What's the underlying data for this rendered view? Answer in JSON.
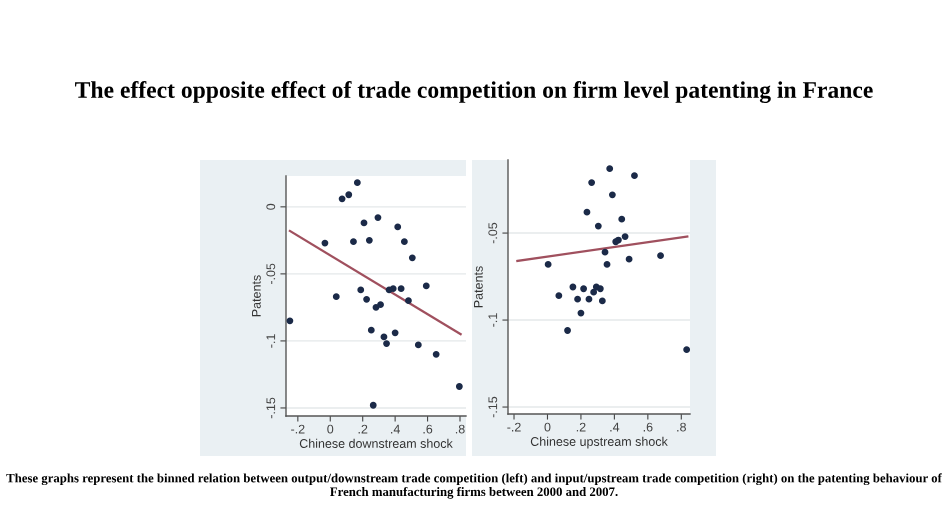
{
  "chart_data": [
    {
      "type": "scatter",
      "title": "The effect opposite effect of trade competition on firm level patenting in France",
      "xlabel": "Chinese downstream shock",
      "ylabel": "Patents",
      "grid": "y",
      "xlim": [
        -0.273,
        0.837
      ],
      "ylim": [
        -0.156,
        0.023
      ],
      "xticks": [
        {
          "value": -0.2,
          "label": "-.2"
        },
        0,
        {
          "value": 0.2,
          "label": ".2"
        },
        {
          "value": 0.4,
          "label": ".4"
        },
        {
          "value": 0.6,
          "label": ".6"
        },
        {
          "value": 0.8,
          "label": ".8"
        }
      ],
      "yticks": [
        0,
        {
          "value": -0.05,
          "label": "-.05"
        },
        {
          "value": -0.1,
          "label": "-.1"
        },
        {
          "value": -0.15,
          "label": "-.15"
        }
      ],
      "series": [
        {
          "marker": "circle",
          "color": "#1b2a48",
          "x": [
            -0.249,
            0.073,
            0.114,
            0.167,
            -0.033,
            0.037,
            0.143,
            0.208,
            0.241,
            0.294,
            0.188,
            0.224,
            0.253,
            0.282,
            0.31,
            0.331,
            0.347,
            0.363,
            0.388,
            0.4,
            0.416,
            0.437,
            0.457,
            0.482,
            0.506,
            0.543,
            0.592,
            0.653,
            0.796,
            0.265
          ],
          "values": [
            -0.085,
            0.006,
            0.009,
            0.018,
            -0.027,
            -0.067,
            -0.026,
            -0.012,
            -0.025,
            -0.008,
            -0.062,
            -0.069,
            -0.092,
            -0.075,
            -0.073,
            -0.097,
            -0.102,
            -0.062,
            -0.061,
            -0.094,
            -0.015,
            -0.061,
            -0.026,
            -0.07,
            -0.038,
            -0.103,
            -0.059,
            -0.11,
            -0.134,
            -0.148
          ]
        },
        {
          "type": "line",
          "color": "#a0505e",
          "x": [
            -0.249,
            0.804
          ],
          "values": [
            -0.018,
            -0.095
          ]
        }
      ]
    },
    {
      "type": "scatter",
      "xlabel": "Chinese upstream shock",
      "ylabel": "Patents",
      "grid": "y",
      "annotations": [
        "These graphs represent the binned relation between output/downstream trade competition (left) and input/upstream trade competition (right) on the patenting behaviour of French manufacturing firms between 2000 and 2007."
      ],
      "xlim": [
        -0.236,
        0.852
      ],
      "ylim": [
        -0.154,
        -0.008
      ],
      "xticks": [
        {
          "value": -0.2,
          "label": "-.2"
        },
        0,
        {
          "value": 0.2,
          "label": ".2"
        },
        {
          "value": 0.4,
          "label": ".4"
        },
        {
          "value": 0.6,
          "label": ".6"
        },
        {
          "value": 0.8,
          "label": ".8"
        }
      ],
      "yticks": [
        {
          "value": -0.05,
          "label": "-.05"
        },
        {
          "value": -0.1,
          "label": "-.1"
        },
        {
          "value": -0.15,
          "label": "-.15"
        }
      ],
      "series": [
        {
          "marker": "circle",
          "color": "#1b2a48",
          "x": [
            0.372,
            0.52,
            0.264,
            0.388,
            0.236,
            0.304,
            0.444,
            0.464,
            0.424,
            0.408,
            0.344,
            0.356,
            0.488,
            0.676,
            0.004,
            0.068,
            0.152,
            0.216,
            0.292,
            0.316,
            0.276,
            0.18,
            0.248,
            0.328,
            0.2,
            0.12,
            0.832
          ],
          "values": [
            -0.013,
            -0.017,
            -0.021,
            -0.028,
            -0.038,
            -0.046,
            -0.042,
            -0.052,
            -0.054,
            -0.055,
            -0.061,
            -0.068,
            -0.065,
            -0.063,
            -0.068,
            -0.086,
            -0.081,
            -0.082,
            -0.081,
            -0.082,
            -0.084,
            -0.088,
            -0.088,
            -0.089,
            -0.096,
            -0.106,
            -0.117
          ]
        },
        {
          "type": "line",
          "color": "#a0505e",
          "x": [
            -0.18,
            0.836
          ],
          "values": [
            -0.066,
            -0.052
          ]
        }
      ]
    }
  ]
}
